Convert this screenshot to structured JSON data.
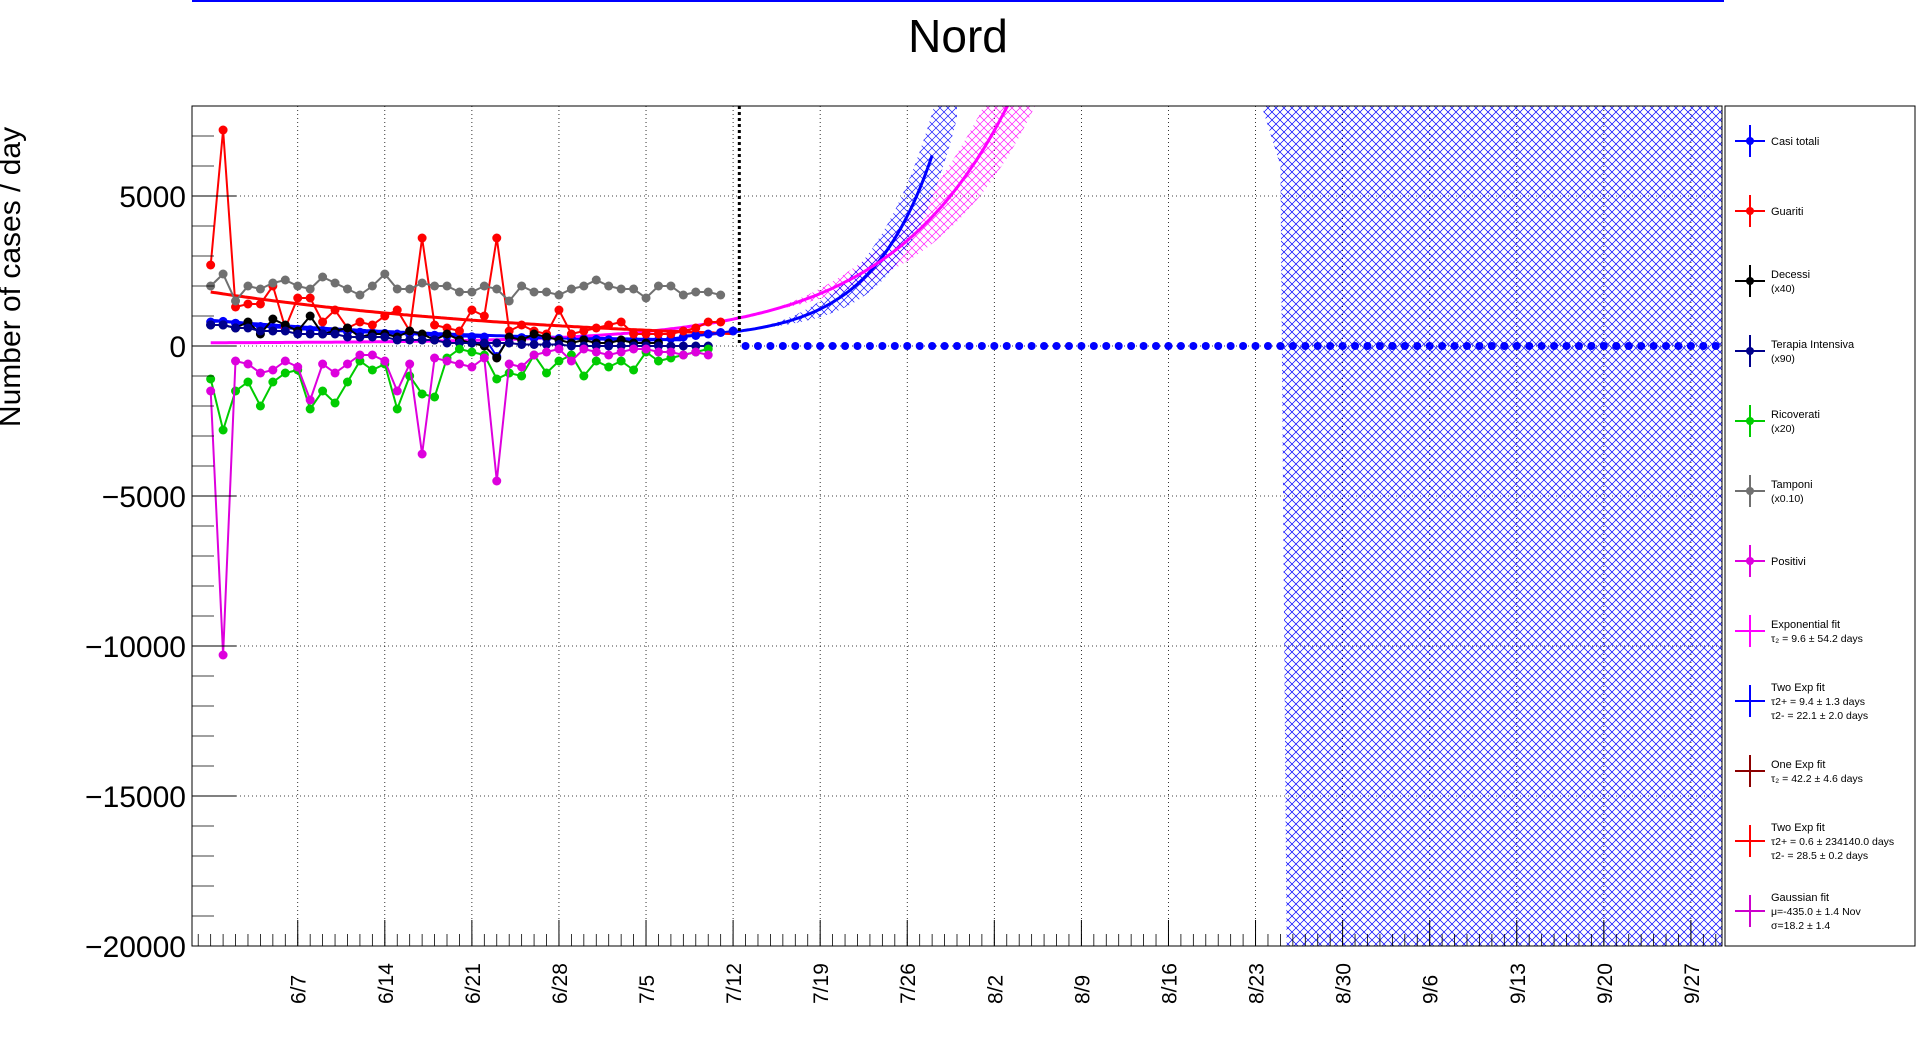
{
  "chart_data": {
    "type": "line",
    "title": "Nord",
    "ylabel": "Number of cases / day",
    "xlabel": "",
    "ylim": [
      -20000,
      8000
    ],
    "x_range_days": [
      -1.5,
      121.5
    ],
    "x_ticks": [
      {
        "label": "6/7",
        "day": 7
      },
      {
        "label": "6/14",
        "day": 14
      },
      {
        "label": "6/21",
        "day": 21
      },
      {
        "label": "6/28",
        "day": 28
      },
      {
        "label": "7/5",
        "day": 35
      },
      {
        "label": "7/12",
        "day": 42
      },
      {
        "label": "7/19",
        "day": 49
      },
      {
        "label": "7/26",
        "day": 56
      },
      {
        "label": "8/2",
        "day": 63
      },
      {
        "label": "8/9",
        "day": 70
      },
      {
        "label": "8/16",
        "day": 77
      },
      {
        "label": "8/23",
        "day": 84
      },
      {
        "label": "8/30",
        "day": 91
      },
      {
        "label": "9/6",
        "day": 98
      },
      {
        "label": "9/13",
        "day": 105
      },
      {
        "label": "9/20",
        "day": 112
      },
      {
        "label": "9/27",
        "day": 119
      }
    ],
    "y_ticks": [
      5000,
      0,
      -5000,
      -10000,
      -15000,
      -20000
    ],
    "x_day_origin": "5/31",
    "fit_boundary_day": 42.5,
    "grid": true,
    "legend_position": "right",
    "series": [
      {
        "name": "Casi totali",
        "sub": "",
        "color": "#0000ff",
        "marker": "dot",
        "x_start": 0,
        "values": [
          800,
          820,
          760,
          700,
          650,
          620,
          600,
          560,
          540,
          520,
          500,
          480,
          460,
          440,
          420,
          400,
          390,
          380,
          360,
          340,
          320,
          310,
          300,
          -350,
          290,
          280,
          270,
          260,
          250,
          240,
          230,
          220,
          210,
          200,
          190,
          180,
          200,
          250,
          300,
          350,
          400,
          450,
          500
        ]
      },
      {
        "name": "Guariti",
        "sub": "",
        "color": "#ff0000",
        "marker": "dot",
        "x_start": 0,
        "values": [
          2700,
          7200,
          1300,
          1400,
          1400,
          2000,
          600,
          1600,
          1600,
          800,
          1200,
          600,
          800,
          700,
          1000,
          1200,
          500,
          3600,
          700,
          600,
          500,
          1200,
          1000,
          3600,
          500,
          700,
          500,
          400,
          1200,
          400,
          500,
          600,
          700,
          800,
          400,
          400,
          400,
          400,
          500,
          600,
          800,
          800
        ]
      },
      {
        "name": "Decessi",
        "sub": "(x40)",
        "color": "#000000",
        "marker": "dot",
        "x_start": 0,
        "values": [
          700,
          700,
          600,
          800,
          400,
          900,
          700,
          500,
          1000,
          400,
          500,
          600,
          300,
          400,
          400,
          300,
          500,
          400,
          200,
          400,
          200,
          100,
          0,
          -400,
          300,
          200,
          400,
          300,
          200,
          100,
          200,
          100,
          100,
          200,
          100,
          100,
          100
        ]
      },
      {
        "name": "Terapia Intensiva",
        "sub": "(x90)",
        "color": "#00008b",
        "marker": "dot",
        "x_start": 0,
        "values": [
          700,
          700,
          600,
          600,
          500,
          500,
          500,
          400,
          400,
          400,
          400,
          300,
          300,
          300,
          300,
          200,
          200,
          200,
          200,
          100,
          100,
          100,
          100,
          100,
          100,
          50,
          50,
          50,
          50,
          0,
          0,
          0,
          0,
          0,
          0,
          0,
          0,
          0,
          0,
          0,
          0
        ]
      },
      {
        "name": "Ricoverati",
        "sub": "(x20)",
        "color": "#00cc00",
        "marker": "dot",
        "x_start": 0,
        "values": [
          -1100,
          -2800,
          -1500,
          -1200,
          -2000,
          -1200,
          -900,
          -800,
          -2100,
          -1500,
          -1900,
          -1200,
          -500,
          -800,
          -600,
          -2100,
          -1000,
          -1600,
          -1700,
          -400,
          -100,
          -200,
          -300,
          -1100,
          -900,
          -1000,
          -300,
          -900,
          -500,
          -300,
          -1000,
          -500,
          -700,
          -500,
          -800,
          -200,
          -500,
          -400,
          -300,
          -200,
          -100
        ]
      },
      {
        "name": "Tamponi",
        "sub": "(x0.10)",
        "color": "#707070",
        "marker": "dot",
        "x_start": 0,
        "values": [
          2000,
          2400,
          1500,
          2000,
          1900,
          2100,
          2200,
          2000,
          1900,
          2300,
          2100,
          1900,
          1700,
          2000,
          2400,
          1900,
          1900,
          2100,
          2000,
          2000,
          1800,
          1800,
          2000,
          1900,
          1500,
          2000,
          1800,
          1800,
          1700,
          1900,
          2000,
          2200,
          2000,
          1900,
          1900,
          1600,
          2000,
          2000,
          1700,
          1800,
          1800,
          1700
        ]
      },
      {
        "name": "Positivi",
        "sub": "",
        "color": "#dd00dd",
        "marker": "dot",
        "x_start": 0,
        "values": [
          -1500,
          -10300,
          -500,
          -600,
          -900,
          -800,
          -500,
          -700,
          -1800,
          -600,
          -900,
          -600,
          -300,
          -300,
          -500,
          -1500,
          -600,
          -3600,
          -400,
          -500,
          -600,
          -700,
          -400,
          -4500,
          -600,
          -700,
          -300,
          -200,
          -100,
          -500,
          -100,
          -200,
          -300,
          -200,
          -100,
          -100,
          -200,
          -200,
          -300,
          -200,
          -300
        ]
      },
      {
        "name": "Exponential fit",
        "sub": "τ₂ = 9.6  ± 54.2 days",
        "color": "#ff00ff",
        "marker": "none"
      },
      {
        "name": "Two Exp fit",
        "sub": "τ2+ = 9.4 ± 1.3 days",
        "sub2": "τ2- = 22.1 ± 2.0 days",
        "color": "#0000ff",
        "marker": "none"
      },
      {
        "name": "One Exp fit",
        "sub": "τ₂ = 42.2  ± 4.6 days",
        "color": "#8b0000",
        "marker": "none"
      },
      {
        "name": "Two Exp fit",
        "sub": "τ2+ = 0.6 ± 234140.0 days",
        "sub2": "τ2- = 28.5 ± 0.2 days",
        "color": "#ff0000",
        "marker": "none"
      },
      {
        "name": "Gaussian fit",
        "sub": "μ=-435.0 ± 1.4 Nov",
        "sub2": "σ=18.2 ± 1.4",
        "color": "#cc00cc",
        "marker": "none"
      }
    ],
    "fit_curves": [
      {
        "name": "Two Exp fit (blue)",
        "color": "#0000ff",
        "start_day": 0,
        "end_day": 58,
        "model": "blue"
      },
      {
        "name": "Exponential fit (magenta)",
        "color": "#ff00ff",
        "start_day": 0,
        "end_day": 80,
        "model": "magenta"
      },
      {
        "name": "Two Exp fit (red)",
        "color": "#ff0000",
        "start_day": 0,
        "end_day": 42,
        "model": "red"
      }
    ],
    "projection_series": {
      "color": "#0000ff",
      "start_day": 43,
      "end_day": 121,
      "value": 0
    }
  }
}
